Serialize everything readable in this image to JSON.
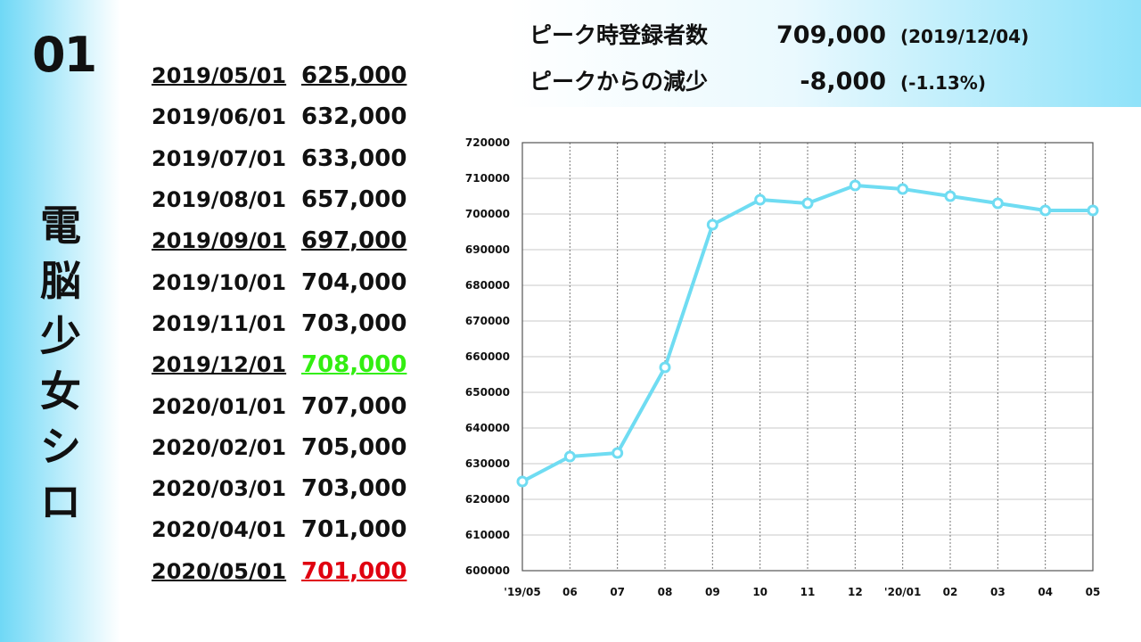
{
  "index": "01",
  "title_chars": [
    "電",
    "脳",
    "少",
    "女",
    "シ",
    "ロ"
  ],
  "rows": [
    {
      "date": "2019/05/01",
      "value": "625,000",
      "underline": true,
      "color": "#111111"
    },
    {
      "date": "2019/06/01",
      "value": "632,000",
      "underline": false,
      "color": "#111111"
    },
    {
      "date": "2019/07/01",
      "value": "633,000",
      "underline": false,
      "color": "#111111"
    },
    {
      "date": "2019/08/01",
      "value": "657,000",
      "underline": false,
      "color": "#111111"
    },
    {
      "date": "2019/09/01",
      "value": "697,000",
      "underline": true,
      "color": "#111111"
    },
    {
      "date": "2019/10/01",
      "value": "704,000",
      "underline": false,
      "color": "#111111"
    },
    {
      "date": "2019/11/01",
      "value": "703,000",
      "underline": false,
      "color": "#111111"
    },
    {
      "date": "2019/12/01",
      "value": "708,000",
      "underline": true,
      "color": "#33ee11"
    },
    {
      "date": "2020/01/01",
      "value": "707,000",
      "underline": false,
      "color": "#111111"
    },
    {
      "date": "2020/02/01",
      "value": "705,000",
      "underline": false,
      "color": "#111111"
    },
    {
      "date": "2020/03/01",
      "value": "703,000",
      "underline": false,
      "color": "#111111"
    },
    {
      "date": "2020/04/01",
      "value": "701,000",
      "underline": false,
      "color": "#111111"
    },
    {
      "date": "2020/05/01",
      "value": "701,000",
      "underline": true,
      "color": "#e00010"
    }
  ],
  "summary": {
    "peak_label": "ピーク時登録者数",
    "peak_value": "709,000",
    "peak_date": "(2019/12/04)",
    "drop_label": "ピークからの減少",
    "drop_value": "-8,000",
    "drop_pct": "(-1.13%)"
  },
  "chart_data": {
    "type": "line",
    "x": [
      "'19/05",
      "06",
      "07",
      "08",
      "09",
      "10",
      "11",
      "12",
      "'20/01",
      "02",
      "03",
      "04",
      "05"
    ],
    "values": [
      625000,
      632000,
      633000,
      657000,
      697000,
      704000,
      703000,
      708000,
      707000,
      705000,
      703000,
      701000,
      701000
    ],
    "ylim": [
      600000,
      720000
    ],
    "yticks": [
      600000,
      610000,
      620000,
      630000,
      640000,
      650000,
      660000,
      670000,
      680000,
      690000,
      700000,
      710000,
      720000
    ],
    "line_color": "#6fdcf2",
    "grid": true
  }
}
